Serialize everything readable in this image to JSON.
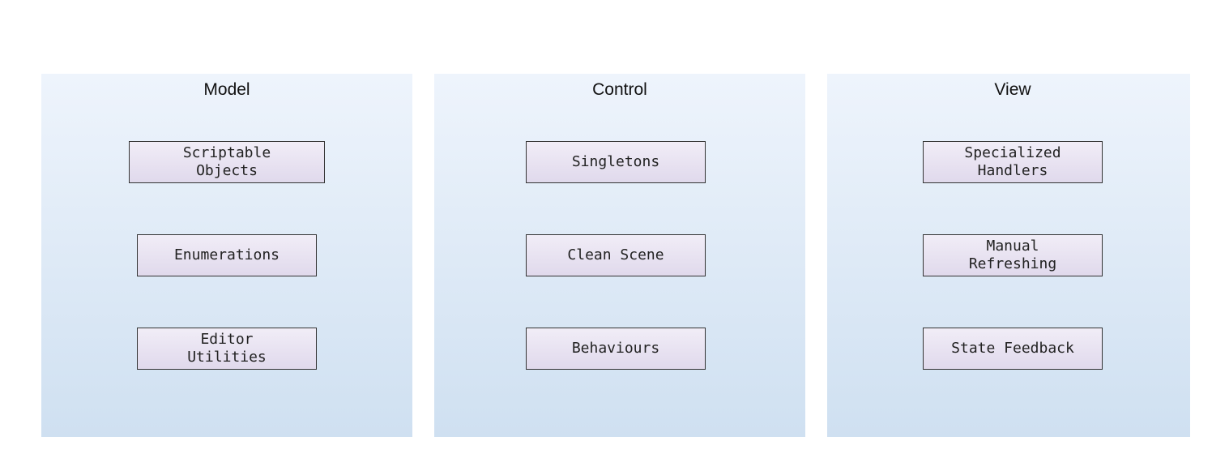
{
  "panels": [
    {
      "title": "Model",
      "items": [
        "Scriptable\nObjects",
        "Enumerations",
        "Editor\nUtilities"
      ]
    },
    {
      "title": "Control",
      "items": [
        "Singletons",
        "Clean Scene",
        "Behaviours"
      ]
    },
    {
      "title": "View",
      "items": [
        "Specialized\nHandlers",
        "Manual\nRefreshing",
        "State Feedback"
      ]
    }
  ]
}
